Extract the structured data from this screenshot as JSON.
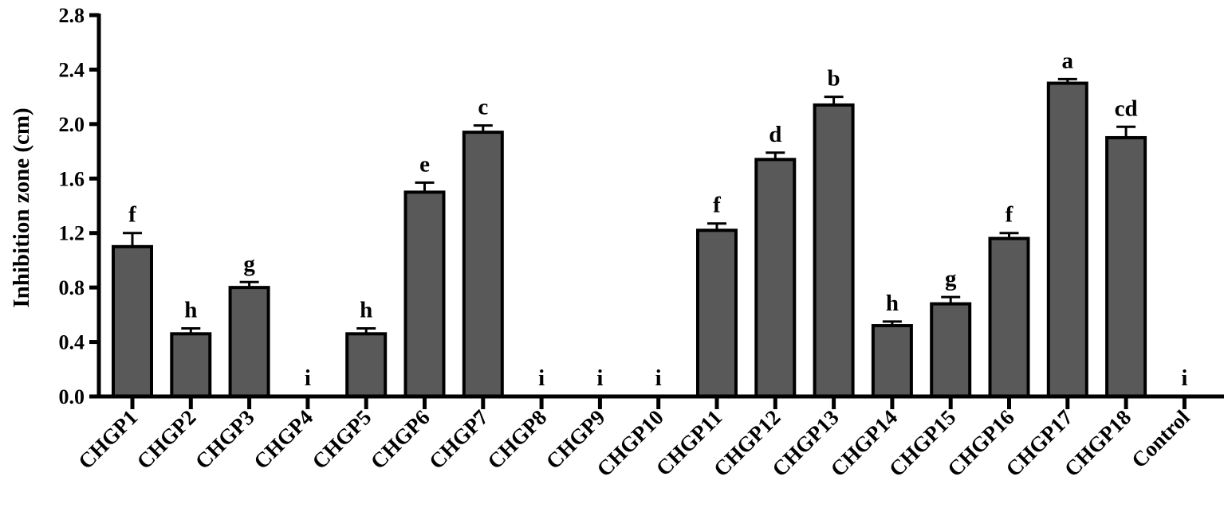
{
  "chart_data": {
    "type": "bar",
    "title": "",
    "xlabel": "",
    "ylabel": "Inhibition zone (cm)",
    "ylim": [
      0,
      2.8
    ],
    "yticks": [
      "0.0",
      "0.4",
      "0.8",
      "1.2",
      "1.6",
      "2.0",
      "2.4",
      "2.8"
    ],
    "grid": false,
    "bar_color": "#595959",
    "categories": [
      "CHGP1",
      "CHGP2",
      "CHGP3",
      "CHGP4",
      "CHGP5",
      "CHGP6",
      "CHGP7",
      "CHGP8",
      "CHGP9",
      "CHGP10",
      "CHGP11",
      "CHGP12",
      "CHGP13",
      "CHGP14",
      "CHGP15",
      "CHGP16",
      "CHGP17",
      "CHGP18",
      "Control"
    ],
    "values": [
      1.1,
      0.46,
      0.8,
      0.0,
      0.46,
      1.5,
      1.94,
      0.0,
      0.0,
      0.0,
      1.22,
      1.74,
      2.14,
      0.52,
      0.68,
      1.16,
      2.3,
      1.9,
      0.0
    ],
    "errors": [
      0.1,
      0.04,
      0.04,
      0.0,
      0.04,
      0.07,
      0.05,
      0.0,
      0.0,
      0.0,
      0.05,
      0.05,
      0.06,
      0.03,
      0.05,
      0.04,
      0.03,
      0.08,
      0.0
    ],
    "letters": [
      "f",
      "h",
      "g",
      "i",
      "h",
      "e",
      "c",
      "i",
      "i",
      "i",
      "f",
      "d",
      "b",
      "h",
      "g",
      "f",
      "a",
      "cd",
      "i"
    ]
  }
}
